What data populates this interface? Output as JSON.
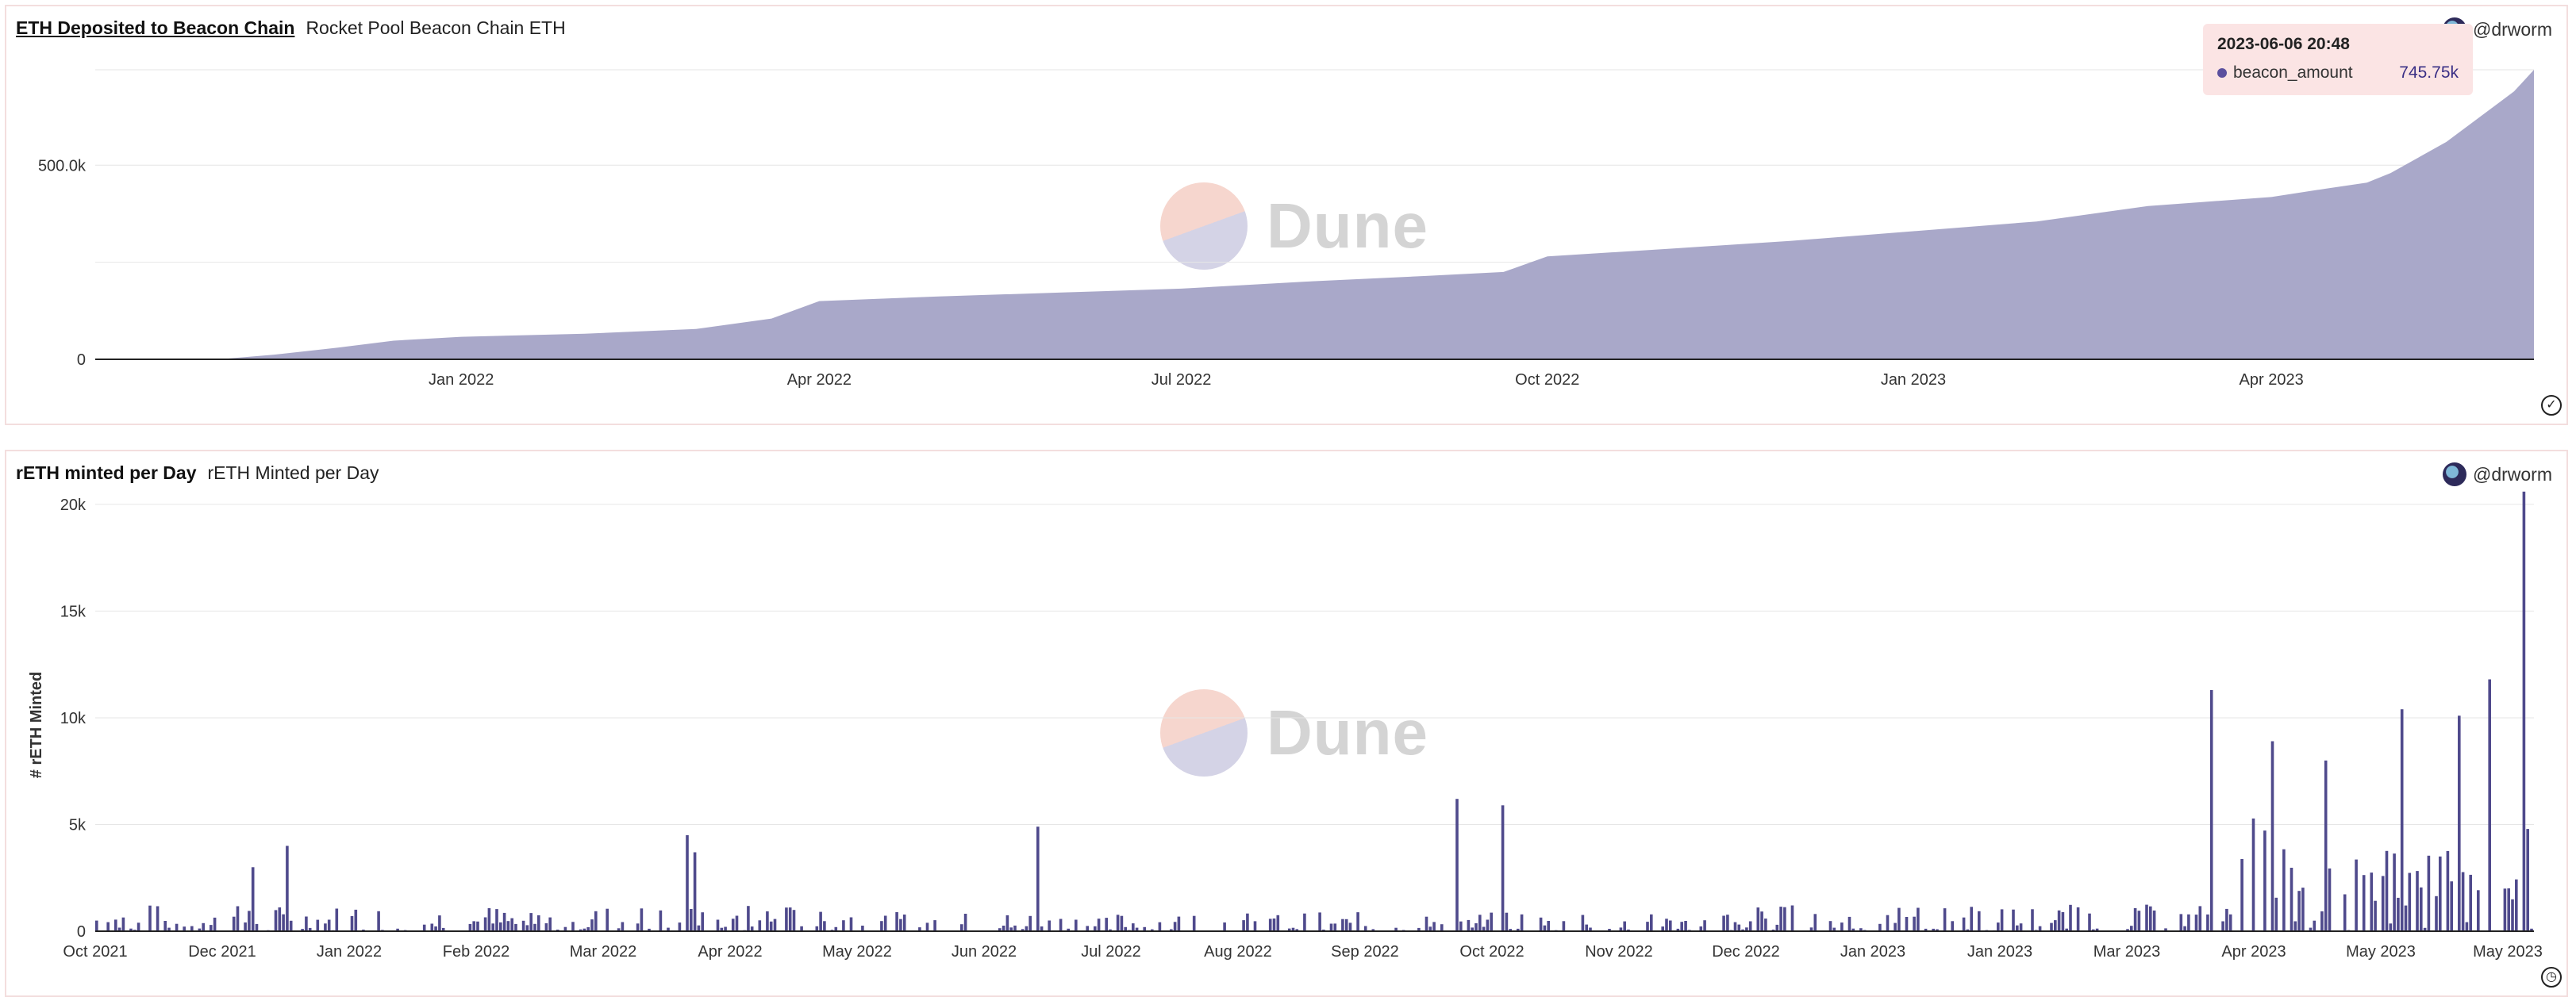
{
  "panel1": {
    "title": "ETH Deposited to Beacon Chain",
    "subtitle": "Rocket Pool Beacon Chain ETH",
    "author": "@drworm",
    "tooltip": {
      "time": "2023-06-06 20:48",
      "series": "beacon_amount",
      "value": "745.75k"
    },
    "watermark": "Dune",
    "status_icon": "check-circle-icon"
  },
  "panel2": {
    "title": "rETH minted per Day",
    "subtitle": "rETH Minted per Day",
    "author": "@drworm",
    "watermark": "Dune",
    "status_icon": "clock-icon"
  },
  "colors": {
    "series": "#a9a8c9",
    "bar": "#4f4a8c",
    "grid": "#e6e6e6"
  },
  "chart_data": [
    {
      "type": "area",
      "title": "ETH Deposited to Beacon Chain",
      "series": [
        {
          "name": "beacon_amount"
        }
      ],
      "x_ticks": [
        "Jan 2022",
        "Apr 2022",
        "Jul 2022",
        "Oct 2022",
        "Jan 2023",
        "Apr 2023"
      ],
      "y_ticks": [
        "0",
        "500.0k"
      ],
      "ylim": [
        0,
        745750
      ],
      "x": [
        "2021-11-01",
        "2021-11-15",
        "2021-12-01",
        "2021-12-15",
        "2022-01-01",
        "2022-02-01",
        "2022-03-01",
        "2022-03-20",
        "2022-04-01",
        "2022-05-01",
        "2022-06-01",
        "2022-07-01",
        "2022-08-01",
        "2022-09-01",
        "2022-09-20",
        "2022-10-01",
        "2022-11-01",
        "2022-12-01",
        "2023-01-01",
        "2023-02-01",
        "2023-03-01",
        "2023-04-01",
        "2023-04-15",
        "2023-04-25",
        "2023-05-01",
        "2023-05-15",
        "2023-06-01",
        "2023-06-06"
      ],
      "values": [
        0,
        12000,
        30000,
        48000,
        58000,
        66000,
        78000,
        105000,
        150000,
        162000,
        172000,
        182000,
        200000,
        215000,
        225000,
        265000,
        285000,
        305000,
        330000,
        355000,
        395000,
        418000,
        440000,
        455000,
        480000,
        560000,
        690000,
        745750
      ]
    },
    {
      "type": "bar",
      "title": "rETH minted per Day",
      "ylabel": "# rETH Minted",
      "x_ticks": [
        "Oct 2021",
        "Dec 2021",
        "Jan 2022",
        "Feb 2022",
        "Mar 2022",
        "Apr 2022",
        "May 2022",
        "Jun 2022",
        "Jul 2022",
        "Aug 2022",
        "Sep 2022",
        "Oct 2022",
        "Nov 2022",
        "Dec 2022",
        "Jan 2023",
        "Jan 2023",
        "Mar 2023",
        "Apr 2023",
        "May 2023",
        "May 2023"
      ],
      "y_ticks": [
        "0",
        "5k",
        "10k",
        "15k",
        "20k"
      ],
      "ylim": [
        0,
        21000
      ],
      "spikes": [
        {
          "day": 50,
          "value": 4000
        },
        {
          "day": 41,
          "value": 3000
        },
        {
          "day": 155,
          "value": 4500
        },
        {
          "day": 157,
          "value": 3700
        },
        {
          "day": 247,
          "value": 4900
        },
        {
          "day": 357,
          "value": 6200
        },
        {
          "day": 369,
          "value": 5900
        },
        {
          "day": 555,
          "value": 11300
        },
        {
          "day": 571,
          "value": 8900
        },
        {
          "day": 585,
          "value": 8000
        },
        {
          "day": 605,
          "value": 10400
        },
        {
          "day": 620,
          "value": 10100
        },
        {
          "day": 628,
          "value": 11800
        },
        {
          "day": 637,
          "value": 20600
        }
      ]
    }
  ]
}
